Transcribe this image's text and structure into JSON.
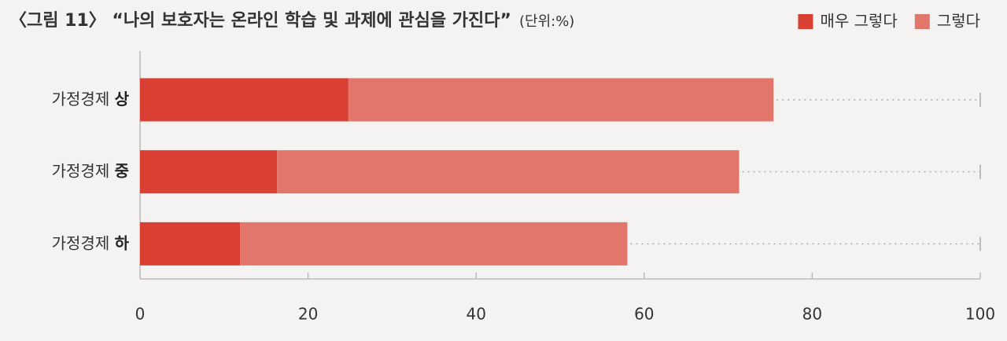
{
  "chart_data": {
    "type": "stacked-barh",
    "title": "〈그림 11〉 “나의 보호자는 온라인 학습 및 과제에 관심을 가진다”",
    "subtitle": "(단위:%)",
    "categories": [
      "가정경제 상",
      "가정경제 중",
      "가정경제 하"
    ],
    "series": [
      {
        "name": "매우 그렇다",
        "color": "#d94033",
        "values": [
          24.8,
          16.3,
          11.9
        ]
      },
      {
        "name": "그렇다",
        "color": "#e2766a",
        "values": [
          50.6,
          55.0,
          46.1
        ]
      }
    ],
    "xlim": [
      0,
      100
    ],
    "xticks": [
      0,
      20,
      40,
      60,
      80,
      100
    ],
    "legend": "top-right"
  }
}
